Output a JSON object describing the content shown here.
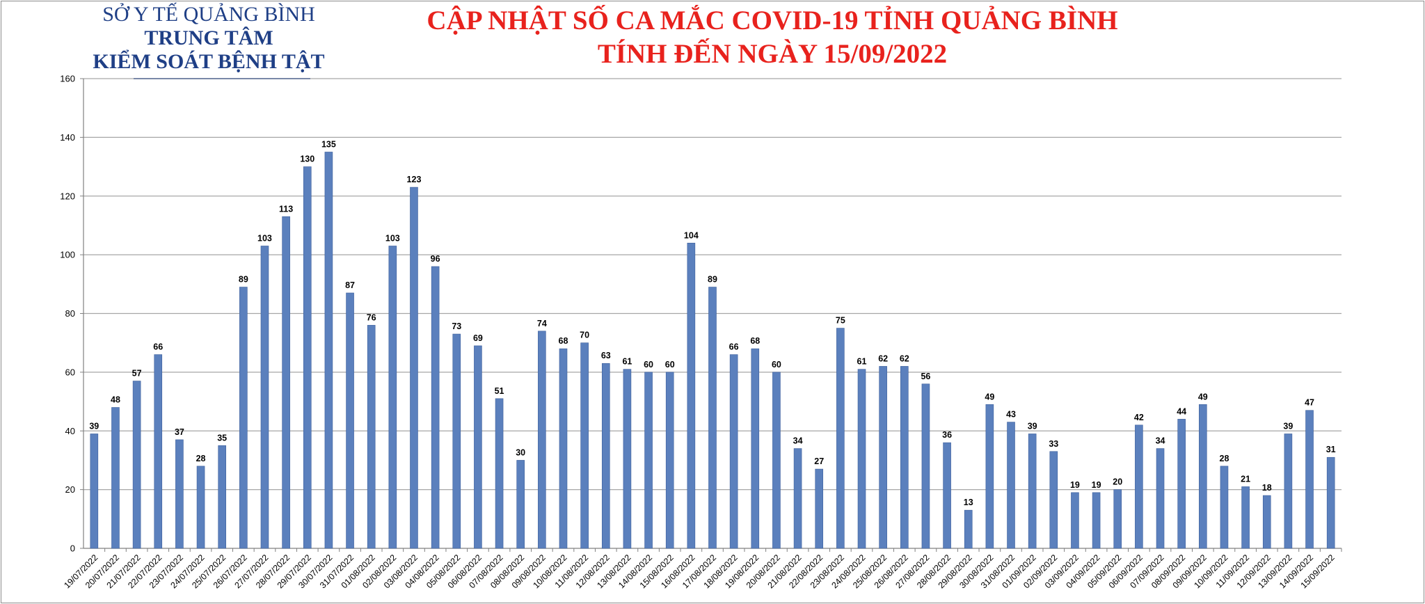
{
  "header": {
    "org_line1": "SỞ Y TẾ QUẢNG BÌNH",
    "org_line2": "TRUNG TÂM",
    "org_line3": "KIỂM SOÁT BỆNH TẬT",
    "title_line1": "CẬP NHẬT SỐ CA MẮC COVID-19 TỈNH QUẢNG BÌNH",
    "title_line2": "TÍNH ĐẾN NGÀY 15/09/2022"
  },
  "colors": {
    "bar": "#5b80bd",
    "bar_edge": "#3d5f9c",
    "title": "#e8221d",
    "org": "#1f3f86",
    "grid": "#a6a6a6"
  },
  "chart_data": {
    "type": "bar",
    "title": "",
    "xlabel": "",
    "ylabel": "",
    "ylim": [
      0,
      160
    ],
    "yticks": [
      0,
      20,
      40,
      60,
      80,
      100,
      120,
      140,
      160
    ],
    "grid": true,
    "legend": "none",
    "categories": [
      "19/07/2022",
      "20/07/2022",
      "21/07/2022",
      "22/07/2022",
      "23/07/2022",
      "24/07/2022",
      "25/07/2022",
      "26/07/2022",
      "27/07/2022",
      "28/07/2022",
      "29/07/2022",
      "30/07/2022",
      "31/07/2022",
      "01/08/2022",
      "02/08/2022",
      "03/08/2022",
      "04/08/2022",
      "05/08/2022",
      "06/08/2022",
      "07/08/2022",
      "08/08/2022",
      "09/08/2022",
      "10/08/2022",
      "11/08/2022",
      "12/08/2022",
      "13/08/2022",
      "14/08/2022",
      "15/08/2022",
      "16/08/2022",
      "17/08/2022",
      "18/08/2022",
      "19/08/2022",
      "20/08/2022",
      "21/08/2022",
      "22/08/2022",
      "23/08/2022",
      "24/08/2022",
      "25/08/2022",
      "26/08/2022",
      "27/08/2022",
      "28/08/2022",
      "29/08/2022",
      "30/08/2022",
      "31/08/2022",
      "01/09/2022",
      "02/09/2022",
      "03/09/2022",
      "04/09/2022",
      "05/09/2022",
      "06/09/2022",
      "07/09/2022",
      "08/09/2022",
      "09/09/2022",
      "10/09/2022",
      "11/09/2022",
      "12/09/2022",
      "13/09/2022",
      "14/09/2022",
      "15/09/2022"
    ],
    "values": [
      39,
      48,
      57,
      66,
      37,
      28,
      35,
      89,
      103,
      113,
      130,
      135,
      87,
      76,
      103,
      123,
      96,
      73,
      69,
      51,
      30,
      74,
      68,
      70,
      63,
      61,
      60,
      60,
      104,
      89,
      66,
      68,
      60,
      34,
      27,
      75,
      61,
      62,
      62,
      56,
      36,
      13,
      49,
      43,
      39,
      33,
      19,
      19,
      20,
      42,
      34,
      44,
      49,
      28,
      21,
      18,
      39,
      47,
      31
    ]
  }
}
